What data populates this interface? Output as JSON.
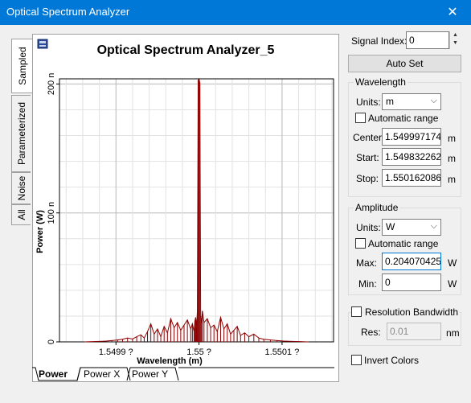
{
  "window": {
    "title": "Optical Spectrum Analyzer",
    "close_glyph": "✕"
  },
  "side_tabs": [
    {
      "label": "Sampled",
      "active": true
    },
    {
      "label": "Parameterized",
      "active": false
    },
    {
      "label": "Noise",
      "active": false
    },
    {
      "label": "All",
      "active": false
    }
  ],
  "bottom_tabs": [
    {
      "label": "Power",
      "active": true
    },
    {
      "label": "Power X",
      "active": false
    },
    {
      "label": "Power Y",
      "active": false
    }
  ],
  "plot": {
    "title": "Optical Spectrum Analyzer_5",
    "xlabel": "Wavelength (m)",
    "ylabel": "Power (W)",
    "y_ticks": [
      "0",
      "100 n",
      "200 n"
    ],
    "x_ticks": [
      "1.5499 ?",
      "1.55 ?",
      "1.5501 ?"
    ],
    "color": "#8b0000"
  },
  "chart_data": {
    "type": "line",
    "title": "Optical Spectrum Analyzer_5",
    "xlabel": "Wavelength (m)",
    "ylabel": "Power (W)",
    "x_tick_labels": [
      "1.5499 ?",
      "1.55 ?",
      "1.5501 ?"
    ],
    "y_tick_labels": [
      "0",
      "100 n",
      "200 n"
    ],
    "xlim": [
      1.549832,
      1.550162
    ],
    "ylim": [
      0,
      2.04e-07
    ],
    "grid": true,
    "series": [
      {
        "x": [
          1.549862,
          1.549872,
          1.54988,
          1.549888,
          1.549895,
          1.549902,
          1.549908,
          1.549914,
          1.54992,
          1.549925,
          1.54993,
          1.549934,
          1.549938,
          1.549942,
          1.549946,
          1.54995,
          1.549954,
          1.549958,
          1.549962,
          1.549966,
          1.54997,
          1.549974,
          1.549978,
          1.549982,
          1.549986,
          1.54999,
          1.549992,
          1.549994,
          1.549995,
          1.549996,
          1.549997,
          1.549998,
          1.549999,
          1.55,
          1.550001,
          1.550002,
          1.550003,
          1.550004,
          1.550006,
          1.55001,
          1.550014,
          1.550018,
          1.550022,
          1.550026,
          1.55003,
          1.550034,
          1.550038,
          1.550042,
          1.550046,
          1.55005,
          1.550055,
          1.55006,
          1.550066,
          1.550072,
          1.550078,
          1.550086,
          1.550094,
          1.550102,
          1.550112,
          1.550122,
          1.550132
        ],
        "y": [
          0.0,
          2e-10,
          4e-10,
          6e-10,
          1e-09,
          1.5e-09,
          2e-09,
          3e-09,
          2.2e-09,
          4e-09,
          5.5e-09,
          3e-09,
          8e-09,
          1.4e-08,
          6e-09,
          1e-08,
          4e-09,
          1.2e-08,
          7e-09,
          1.8e-08,
          1.1e-08,
          1.5e-08,
          9e-09,
          1.3e-08,
          1.7e-08,
          1e-08,
          1.4e-08,
          8e-09,
          1.6e-08,
          1.9e-08,
          1.2e-08,
          2.3e-08,
          2.03e-07,
          2.04e-07,
          2.01e-07,
          2e-08,
          1.4e-08,
          2.4e-08,
          1.5e-08,
          1.8e-08,
          1.1e-08,
          1.3e-08,
          8e-09,
          1.9e-08,
          1e-08,
          1.4e-08,
          6e-09,
          9e-09,
          1.2e-08,
          5e-09,
          7e-09,
          4e-09,
          6e-09,
          3e-09,
          2e-09,
          1.5e-09,
          1e-09,
          6e-10,
          4e-10,
          2e-10,
          0.0
        ]
      }
    ]
  },
  "signal_index": {
    "label": "Signal Index:",
    "value": "0"
  },
  "auto_set": {
    "label": "Auto Set"
  },
  "wavelength": {
    "group_label": "Wavelength",
    "units_label": "Units:",
    "units_value": "m",
    "auto_range_label": "Automatic range",
    "center_label": "Center:",
    "center_value": "1.5499971745",
    "start_label": "Start:",
    "start_value": "1.5498322625",
    "stop_label": "Stop:",
    "stop_value": "1.5501620865",
    "unit_suffix": "m"
  },
  "amplitude": {
    "group_label": "Amplitude",
    "units_label": "Units:",
    "units_value": "W",
    "auto_range_label": "Automatic range",
    "max_label": "Max:",
    "max_value": "0.2040704251",
    "min_label": "Min:",
    "min_value": "0",
    "unit_suffix": "W"
  },
  "resolution": {
    "label": "Resolution Bandwidth",
    "res_label": "Res:",
    "res_value": "0.01",
    "unit": "nm"
  },
  "invert_colors": {
    "label": "Invert Colors"
  }
}
